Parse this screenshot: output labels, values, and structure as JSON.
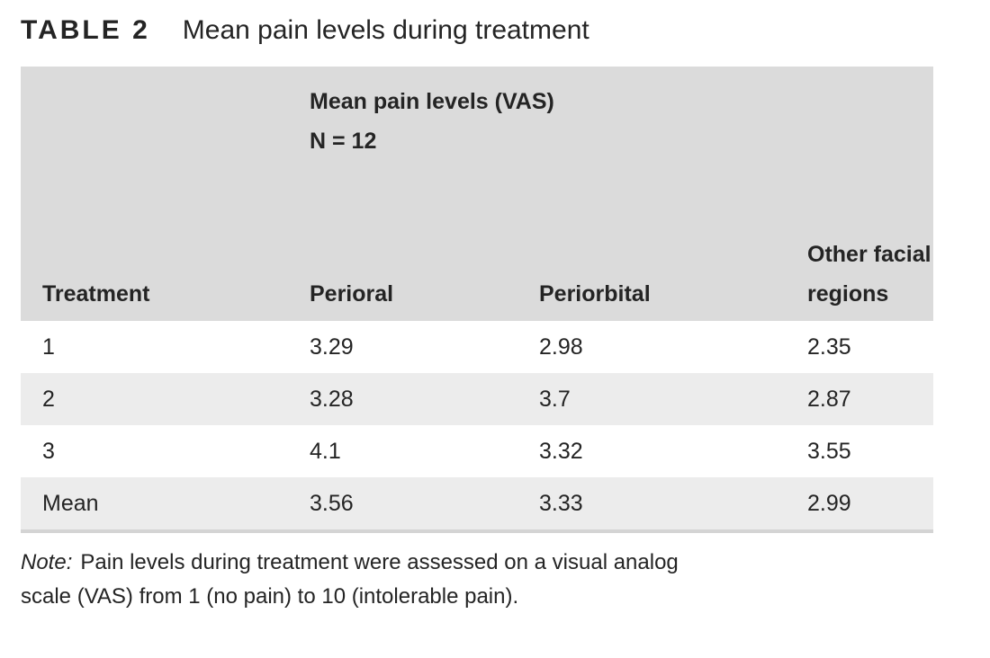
{
  "title": {
    "label": "TABLE 2",
    "caption": "Mean pain levels during treatment"
  },
  "table": {
    "spanner_line1": "Mean pain levels (VAS)",
    "spanner_line2": "N = 12",
    "columns": [
      "Treatment",
      "Perioral",
      "Periorbital",
      "Other facial regions"
    ],
    "rows": [
      [
        "1",
        "3.29",
        "2.98",
        "2.35"
      ],
      [
        "2",
        "3.28",
        "3.7",
        "2.87"
      ],
      [
        "3",
        "4.1",
        "3.32",
        "3.55"
      ],
      [
        "Mean",
        "3.56",
        "3.33",
        "2.99"
      ]
    ]
  },
  "note": {
    "label": "Note:",
    "line1": "Pain levels during treatment were assessed on a visual analog",
    "line2": "scale (VAS) from 1 (no pain) to 10 (intolerable pain)."
  },
  "colors": {
    "header_bg": "#dbdbdb",
    "row_alt_bg": "#ececec",
    "bottom_border": "#d4d4d4",
    "text": "#242424"
  }
}
